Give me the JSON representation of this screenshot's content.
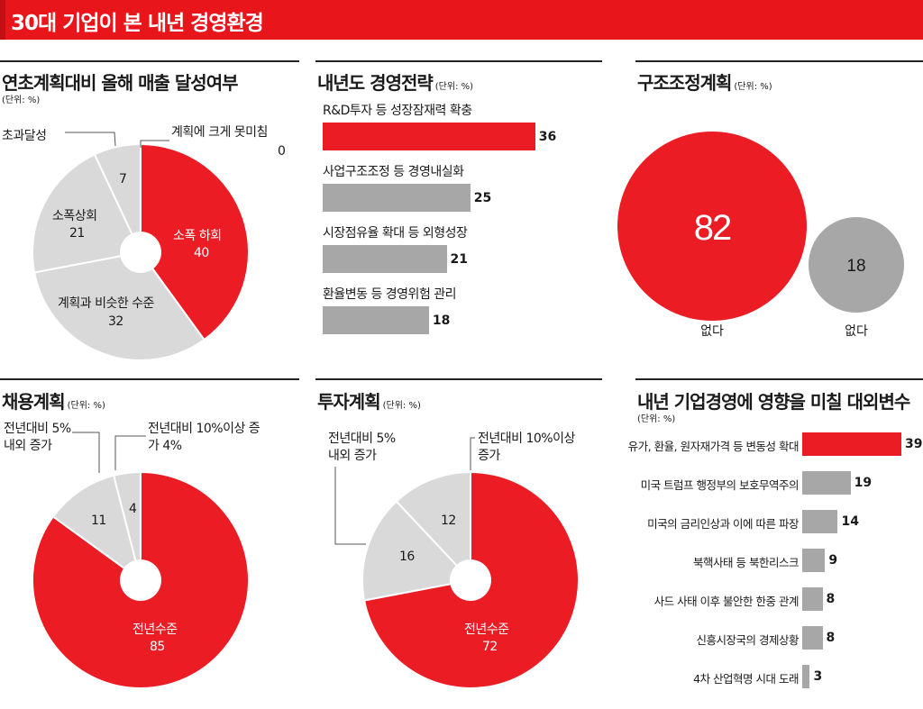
{
  "header": {
    "title": "30대 기업이 본 내년 경영환경"
  },
  "colors": {
    "red": "#ec1c24",
    "gray": "#a7a7a7",
    "light_gray": "#d9d9d9",
    "header_red": "#e8151b"
  },
  "panels": {
    "sales": {
      "title": "연초계획대비 올해 매출 달성여부",
      "unit": "(단위: %)"
    },
    "strategy": {
      "title": "내년도 경영전략",
      "unit": "(단위: %)"
    },
    "restructure": {
      "title": "구조조정계획",
      "unit": "(단위: %)"
    },
    "hiring": {
      "title": "채용계획",
      "unit": "(단위: %)"
    },
    "investment": {
      "title": "투자계획",
      "unit": "(단위: %)"
    },
    "external": {
      "title": "내년 기업경영에 영향을 미칠 대외변수",
      "unit": "(단위: %)"
    }
  },
  "chart_data": [
    {
      "id": "sales",
      "type": "pie",
      "title": "연초계획대비 올해 매출 달성여부",
      "slices": [
        {
          "label": "소폭 하회",
          "value": 40,
          "color": "#ec1c24"
        },
        {
          "label": "계획과 비슷한 수준",
          "value": 32,
          "color": "#d9d9d9"
        },
        {
          "label": "소폭상회",
          "value": 21,
          "color": "#d9d9d9"
        },
        {
          "label": "초과달성",
          "value": 7,
          "color": "#d9d9d9"
        },
        {
          "label": "계획에 크게 못미침",
          "value": 0,
          "color": "#d9d9d9"
        }
      ]
    },
    {
      "id": "strategy",
      "type": "bar",
      "title": "내년도 경영전략",
      "categories": [
        "R&D투자 등 성장잠재력 확충",
        "사업구조조정 등 경영내실화",
        "시장점유율 확대 등 외형성장",
        "환율변동 등 경영위험 관리"
      ],
      "values": [
        36,
        25,
        21,
        18
      ]
    },
    {
      "id": "restructure",
      "type": "bubble",
      "title": "구조조정계획",
      "categories": [
        "없다",
        "없다"
      ],
      "values": [
        82,
        18
      ]
    },
    {
      "id": "hiring",
      "type": "pie",
      "title": "채용계획",
      "slices": [
        {
          "label": "전년수준",
          "value": 85,
          "color": "#ec1c24"
        },
        {
          "label": "전년대비 5%내외 증가",
          "value": 11,
          "color": "#d9d9d9"
        },
        {
          "label": "전년대비 10%이상 증가 4%",
          "value": 4,
          "color": "#d9d9d9"
        }
      ]
    },
    {
      "id": "investment",
      "type": "pie",
      "title": "투자계획",
      "slices": [
        {
          "label": "전년수준",
          "value": 72,
          "color": "#ec1c24"
        },
        {
          "label": "전년대비 5%내외 증가",
          "value": 16,
          "color": "#d9d9d9"
        },
        {
          "label": "전년대비 10%이상 증가",
          "value": 12,
          "color": "#d9d9d9"
        }
      ]
    },
    {
      "id": "external",
      "type": "bar",
      "title": "내년 기업경영에 영향을 미칠 대외변수",
      "categories": [
        "유가, 환율, 원자재가격 등 변동성 확대",
        "미국 트럼프 행정부의 보호무역주의",
        "미국의 금리인상과 이에 따른 파장",
        "북핵사태 등 북한리스크",
        "사드 사태 이후 불안한 한중  관계",
        "신흥시장국의 경제상황",
        "4차 산업혁명 시대 도래"
      ],
      "values": [
        39,
        19,
        14,
        9,
        8,
        8,
        3
      ]
    }
  ]
}
